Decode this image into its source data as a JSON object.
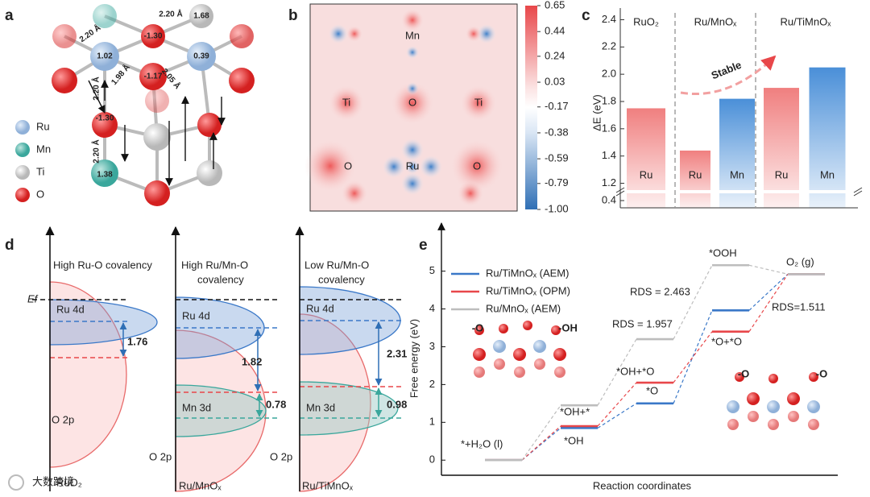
{
  "panel_labels": [
    "a",
    "b",
    "c",
    "d",
    "e"
  ],
  "panel_a": {
    "legend": [
      "Ru",
      "Mn",
      "Ti",
      "O"
    ],
    "bond_labels": [
      "2.20 Å",
      "2.20 Å",
      "1.98 Å",
      "2.05 Å",
      "2.20 Å",
      "2.20 Å"
    ],
    "charges": [
      "-1.30",
      "1.02",
      "0.39",
      "-1.17",
      "1.68",
      "-1.30",
      "1.38"
    ]
  },
  "panel_b": {
    "labels": [
      "Mn",
      "Ti",
      "O",
      "Ti",
      "O",
      "Ru",
      "O"
    ],
    "colorbar_lim": [
      -1.0,
      0.65
    ],
    "colorbar_ticks": [
      0.65,
      0.44,
      0.24,
      0.03,
      -0.17,
      -0.38,
      -0.59,
      -0.79,
      {
        "value": -1.0,
        "label": "-1.00"
      }
    ]
  },
  "chart_data": [
    {
      "type": "bar",
      "ylabel": "ΔE (eV)",
      "groups": [
        "RuO₂",
        "Ru/MnOₓ",
        "Ru/TiMnOₓ"
      ],
      "categories": [
        "Ru",
        "Ru",
        "Mn",
        "Ru",
        "Mn"
      ],
      "values": [
        1.75,
        1.44,
        1.82,
        1.9,
        2.05
      ],
      "colors": [
        "#f07f7f",
        "#f07f7f",
        "#4a8fd8",
        "#f07f7f",
        "#4a8fd8"
      ],
      "ylim": [
        0.35,
        2.45
      ],
      "axis_break": [
        0.45,
        1.15
      ],
      "yticks": [
        0.4,
        1.2,
        1.4,
        1.6,
        1.8,
        {
          "value": 2.0,
          "label": "2.0"
        },
        2.2,
        2.4
      ],
      "annotation": "Stable"
    },
    {
      "type": "step",
      "ylabel": "Free energy (eV)",
      "xlabel": "Reaction coordinates",
      "categories": [
        null,
        null,
        null,
        null,
        null
      ],
      "series": [
        {
          "name": "Ru/TiMnOₓ (AEM)",
          "color": "#3a78c8",
          "values": [
            0,
            0.85,
            1.5,
            3.963,
            4.92
          ]
        },
        {
          "name": "Ru/TiMnOₓ (OPM)",
          "color": "#e8474a",
          "values": [
            0,
            0.9,
            2.05,
            3.4,
            4.92
          ]
        },
        {
          "name": "Ru/MnOₓ (AEM)",
          "color": "#bdbdbd",
          "values": [
            0,
            1.45,
            3.2,
            5.157,
            4.92
          ]
        }
      ],
      "ylim": [
        -0.4,
        6.1
      ],
      "yticks": [
        0,
        1,
        2,
        3,
        4,
        5
      ],
      "annotations": [
        "*+H₂O (l)",
        "*OH+*",
        "*OH",
        "*OH+*O",
        "*O",
        "RDS = 1.957",
        "RDS = 2.463",
        "*OOH",
        "O₂ (g)",
        "RDS=1.511",
        "*O+*O"
      ],
      "inset_labels": [
        "-O",
        "-OH",
        "-O",
        "-O"
      ]
    }
  ],
  "panel_d": {
    "ef_label": "Ef",
    "columns": [
      {
        "title": [
          "High Ru-O covalency"
        ],
        "ru": "Ru 4d",
        "o": "O 2p",
        "name": "RuO₂",
        "gaps": [
          1.76
        ]
      },
      {
        "title": [
          "High Ru/Mn-O",
          "covalency"
        ],
        "ru": "Ru 4d",
        "mn": "Mn 3d",
        "o": "O 2p",
        "name": "Ru/MnOₓ",
        "gaps": [
          1.82,
          0.78
        ]
      },
      {
        "title": [
          "Low Ru/Mn-O",
          "covalency"
        ],
        "ru": "Ru 4d",
        "mn": "Mn 3d",
        "o": "O 2p",
        "name": "Ru/TiMnOₓ",
        "gaps": [
          2.31,
          0.98
        ]
      }
    ]
  },
  "watermark": "大数跨境"
}
